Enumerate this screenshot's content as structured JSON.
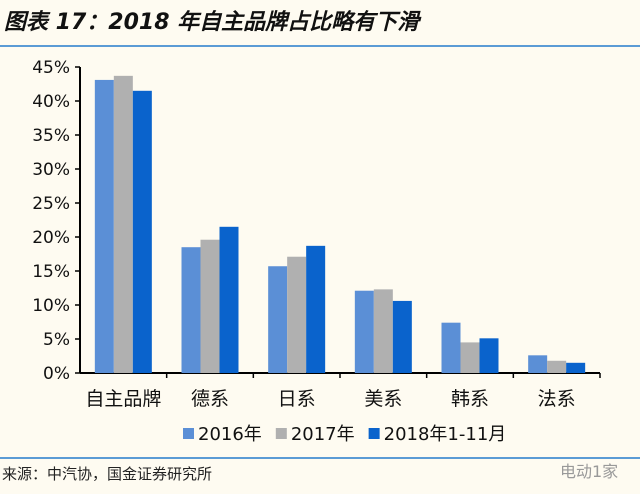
{
  "title": "图表 17：2018 年自主品牌占比略有下滑",
  "source": "来源：中汽协，国金证券研究所",
  "watermark": "电动1家",
  "chart_data": {
    "type": "bar",
    "categories": [
      "自主品牌",
      "德系",
      "日系",
      "美系",
      "韩系",
      "法系"
    ],
    "series": [
      {
        "name": "2016年",
        "color": "#5b8fd6",
        "values": [
          43.1,
          18.5,
          15.7,
          12.1,
          7.4,
          2.6
        ]
      },
      {
        "name": "2017年",
        "color": "#b0b0b0",
        "values": [
          43.7,
          19.6,
          17.1,
          12.3,
          4.5,
          1.8
        ]
      },
      {
        "name": "2018年1-11月",
        "color": "#0a63cc",
        "values": [
          41.5,
          21.5,
          18.7,
          10.6,
          5.1,
          1.5
        ]
      }
    ],
    "ylim": [
      0,
      45
    ],
    "yticks": [
      "0%",
      "5%",
      "10%",
      "15%",
      "20%",
      "25%",
      "30%",
      "35%",
      "40%",
      "45%"
    ],
    "legend": "bottom",
    "grid": false
  }
}
